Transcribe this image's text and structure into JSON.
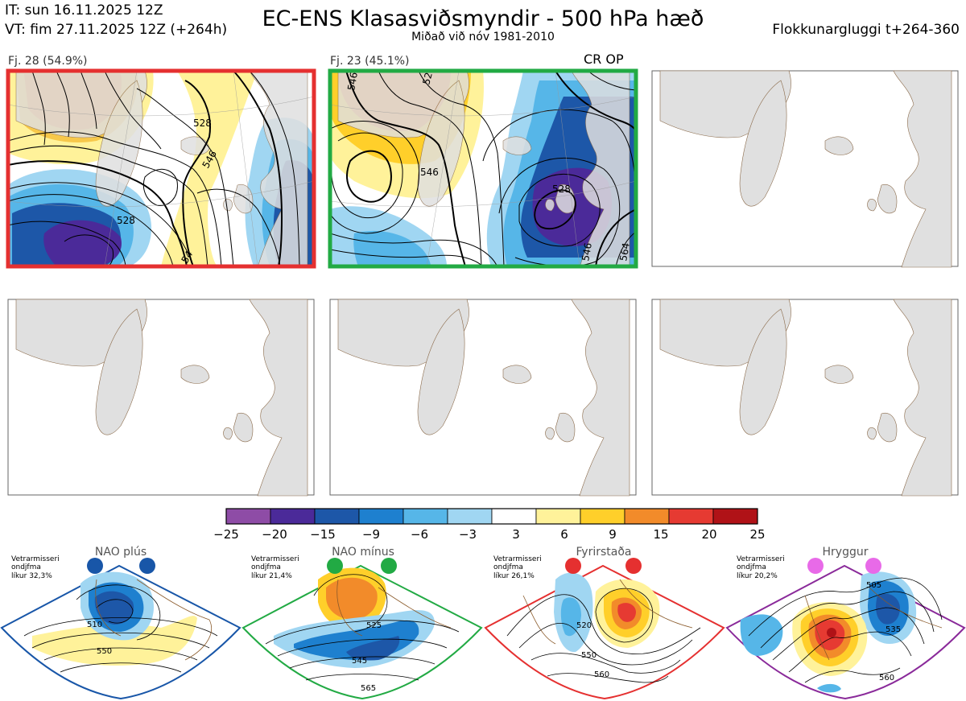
{
  "header": {
    "issue_time": "IT: sun 16.11.2025 12Z",
    "valid_time": "VT: fim 27.11.2025 12Z  (+264h)",
    "title": "EC-ENS Klasasviðsmyndir - 500 hPa hæð",
    "subtitle": "Miðað við nóv 1981-2010",
    "window": "Flokkunargluggi t+264-360"
  },
  "clusters": [
    {
      "label": "Fj. 28 (54.9%)",
      "border_color": "#e53030",
      "contour_labels": [
        "528",
        "546",
        "528",
        "54"
      ]
    },
    {
      "label": "Fj. 23 (45.1%)",
      "border_color": "#22aa44",
      "tag": "CR OP",
      "contour_labels": [
        "546",
        "528",
        "546",
        "528",
        "546",
        "564"
      ]
    }
  ],
  "legend": {
    "ticks": [
      "−25",
      "−20",
      "−15",
      "−9",
      "−6",
      "−3",
      "3",
      "6",
      "9",
      "15",
      "20",
      "25"
    ],
    "colors": [
      "#8e4ca6",
      "#4b2a99",
      "#1d57a8",
      "#1e80cf",
      "#56b6e8",
      "#a0d6f2",
      "#ffffff",
      "#fff29a",
      "#ffcf2a",
      "#f28b2a",
      "#e63a32",
      "#b01217"
    ]
  },
  "regimes": [
    {
      "name": "NAO plús",
      "color": "#1856a8",
      "season": "Vetrarmisseri",
      "freq_label": "ondjfma",
      "probability": "líkur 32,3%",
      "contours": [
        "510",
        "550"
      ]
    },
    {
      "name": "NAO mínus",
      "color": "#22aa44",
      "season": "Vetrarmisseri",
      "freq_label": "ondjfma",
      "probability": "líkur 21,4%",
      "contours": [
        "525",
        "545",
        "565"
      ]
    },
    {
      "name": "Fyrirstaða",
      "color": "#e53030",
      "season": "Vetrarmisseri",
      "freq_label": "ondjfma",
      "probability": "líkur 26,1%",
      "contours": [
        "520",
        "550",
        "560"
      ]
    },
    {
      "name": "Hryggur",
      "color": "#8a2a9a",
      "season": "Vetrarmisseri",
      "freq_label": "ondjfma",
      "probability": "líkur 20,2%",
      "contours": [
        "505",
        "535",
        "560"
      ],
      "dot_color": "#e86ae8"
    }
  ]
}
